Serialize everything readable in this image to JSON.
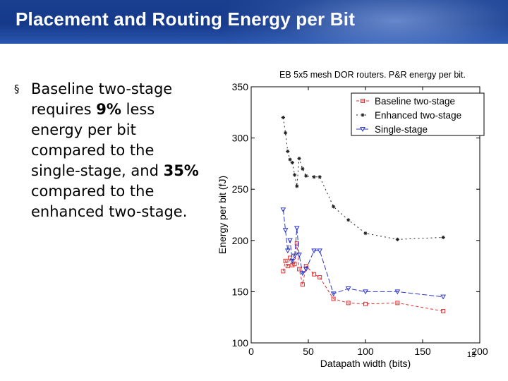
{
  "slide": {
    "title": "Placement and Routing Energy per Bit",
    "page_number": "13",
    "bullet": {
      "marker": "§",
      "parts": [
        {
          "text": "Baseline two-stage requires ",
          "bold": false
        },
        {
          "text": "9%",
          "bold": true
        },
        {
          "text": " less energy per bit compared to the single-stage, and ",
          "bold": false
        },
        {
          "text": "35%",
          "bold": true
        },
        {
          "text": " compared to the enhanced two-stage.",
          "bold": false
        }
      ]
    }
  },
  "chart_data": {
    "type": "line",
    "title": "EB 5x5 mesh DOR routers. P&R energy per bit.",
    "xlabel": "Datapath width (bits)",
    "ylabel": "Energy per bit (fJ)",
    "xlim": [
      0,
      200
    ],
    "ylim": [
      100,
      350
    ],
    "xticks": [
      0,
      50,
      100,
      150,
      200
    ],
    "yticks": [
      100,
      150,
      200,
      250,
      300,
      350
    ],
    "legend_position": "top-right",
    "series": [
      {
        "name": "Baseline two-stage",
        "color": "#e03030",
        "marker": "square",
        "dash": "4,3",
        "x": [
          28,
          30,
          32,
          34,
          36,
          38,
          40,
          42,
          45,
          48,
          55,
          60,
          72,
          85,
          100,
          128,
          168
        ],
        "y": [
          170,
          180,
          175,
          183,
          176,
          177,
          197,
          172,
          157,
          175,
          167,
          164,
          143,
          139,
          138,
          139,
          131
        ]
      },
      {
        "name": "Enhanced two-stage",
        "color": "#202020",
        "marker": "star",
        "dash": "2,4",
        "x": [
          28,
          30,
          32,
          34,
          36,
          38,
          40,
          42,
          45,
          48,
          55,
          60,
          72,
          85,
          100,
          128,
          168
        ],
        "y": [
          320,
          305,
          287,
          279,
          276,
          264,
          253,
          280,
          270,
          263,
          262,
          262,
          233,
          220,
          207,
          201,
          203
        ]
      },
      {
        "name": "Single-stage",
        "color": "#2a35c8",
        "marker": "triangle-down",
        "dash": "7,3",
        "x": [
          28,
          30,
          32,
          34,
          36,
          38,
          40,
          42,
          45,
          48,
          55,
          60,
          72,
          85,
          100,
          128,
          168
        ],
        "y": [
          230,
          210,
          190,
          200,
          180,
          185,
          212,
          186,
          168,
          172,
          190,
          190,
          148,
          153,
          150,
          150,
          145
        ]
      }
    ]
  }
}
